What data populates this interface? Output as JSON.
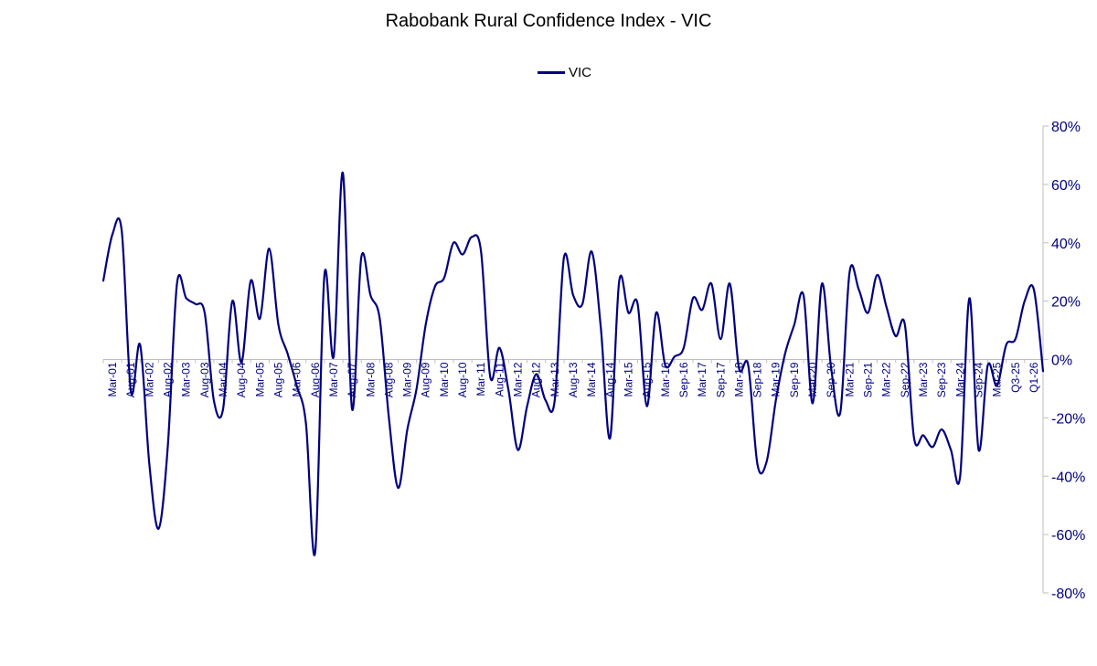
{
  "chart_data": {
    "type": "line",
    "title": "Rabobank Rural Confidence Index - VIC",
    "xlabel": "",
    "ylabel": "",
    "legend_position": "top-center",
    "grid": false,
    "ylim": [
      -80,
      80
    ],
    "y_ticks": [
      "80%",
      "60%",
      "40%",
      "20%",
      "0%",
      "-20%",
      "-40%",
      "-60%",
      "-80%"
    ],
    "y_tick_values": [
      80,
      60,
      40,
      20,
      0,
      -20,
      -40,
      -60,
      -80
    ],
    "x_tick_labels": [
      "Mar-01",
      "Aug-01",
      "Mar-02",
      "Aug-02",
      "Mar-03",
      "Aug-03",
      "Mar-04",
      "Aug-04",
      "Mar-05",
      "Aug-05",
      "Mar-06",
      "Aug-06",
      "Mar-07",
      "Aug-07",
      "Mar-08",
      "Aug-08",
      "Mar-09",
      "Aug-09",
      "Mar-10",
      "Aug-10",
      "Mar-11",
      "Aug-11",
      "Mar-12",
      "Aug-12",
      "Mar-13",
      "Aug-13",
      "Mar-14",
      "Aug-14",
      "Mar-15",
      "Aug-15",
      "Mar-16",
      "Sep-16",
      "Mar-17",
      "Sep-17",
      "Mar-18",
      "Sep-18",
      "Mar-19",
      "Sep-19",
      "Mar-20",
      "Sep-20",
      "Mar-21",
      "Sep-21",
      "Mar-22",
      "Sep-22",
      "Mar-23",
      "Sep-23",
      "Mar-24",
      "Sep-24",
      "Mar-25",
      "Q3-25",
      "Q1-26"
    ],
    "series": [
      {
        "name": "VIC",
        "color": "#000080",
        "values": [
          27,
          43,
          44,
          -11,
          5,
          -36,
          -58,
          -30,
          26,
          21,
          19,
          16,
          -14,
          -17,
          20,
          -1,
          27,
          14,
          38,
          12,
          2,
          -9,
          -22,
          -66,
          29,
          1,
          64,
          -17,
          35,
          22,
          14,
          -20,
          -44,
          -24,
          -10,
          12,
          25,
          28,
          40,
          36,
          42,
          37,
          -6,
          4,
          -11,
          -31,
          -16,
          -5,
          -14,
          -14,
          35,
          22,
          19,
          37,
          11,
          -27,
          27,
          16,
          19,
          -16,
          16,
          -2,
          1,
          4,
          21,
          17,
          26,
          7,
          26,
          -3,
          -2,
          -36,
          -35,
          -14,
          2,
          12,
          22,
          -15,
          26,
          -3,
          -18,
          30,
          24,
          16,
          29,
          18,
          8,
          12,
          -27,
          -26,
          -30,
          -24,
          -31,
          -40,
          21,
          -31,
          -2,
          -9,
          5,
          7,
          20,
          24,
          -4
        ]
      }
    ]
  }
}
